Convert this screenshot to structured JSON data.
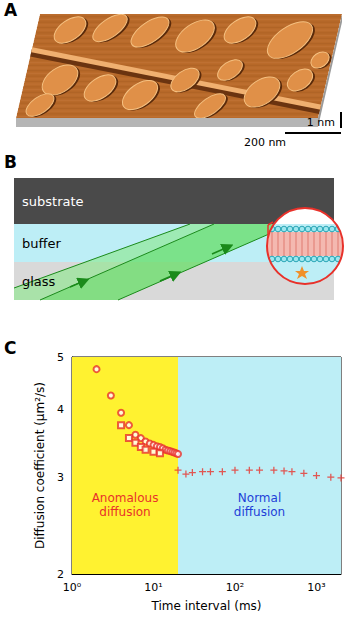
{
  "panels": {
    "A": {
      "label": "A",
      "scale_bars": {
        "horizontal": "200 nm",
        "vertical": "1 nm"
      }
    },
    "B": {
      "label": "B",
      "layers": [
        "substrate",
        "buffer",
        "glass"
      ]
    },
    "C": {
      "label": "C"
    }
  },
  "chart_data": {
    "type": "scatter",
    "x_label": "Time interval (ms)",
    "y_label": "Diffusion coefficient (μm²/s)",
    "log": true,
    "grid": false,
    "xlim": [
      1,
      2000
    ],
    "xticks": [
      {
        "value": 1,
        "label": "10⁰"
      },
      {
        "value": 10,
        "label": "10¹"
      },
      {
        "value": 100,
        "label": "10²"
      },
      {
        "value": 1000,
        "label": "10³"
      }
    ],
    "ylim": [
      2,
      5
    ],
    "yticks": [
      2,
      3,
      4,
      5
    ],
    "regions": [
      {
        "label": "Anomalous diffusion",
        "x": [
          1,
          20
        ],
        "color": "#fff230"
      },
      {
        "label": "Normal diffusion",
        "x": [
          20,
          2000
        ],
        "color": "#bdeef6"
      }
    ],
    "series": [
      {
        "color": "#e8312a",
        "marker": "circle",
        "x": [
          2,
          3,
          4,
          5,
          6,
          7,
          8,
          9,
          10,
          11,
          12,
          13,
          14,
          15,
          16,
          17,
          18,
          19,
          20
        ],
        "values": [
          4.75,
          4.25,
          3.95,
          3.75,
          3.6,
          3.55,
          3.5,
          3.47,
          3.45,
          3.43,
          3.42,
          3.4,
          3.38,
          3.37,
          3.36,
          3.35,
          3.34,
          3.33,
          3.32
        ]
      },
      {
        "color": "#e8312a",
        "marker": "square",
        "x": [
          4,
          5,
          6,
          7,
          8,
          10,
          12
        ],
        "values": [
          3.75,
          3.55,
          3.48,
          3.42,
          3.38,
          3.35,
          3.33
        ]
      },
      {
        "color": "#e8312a",
        "marker": "plus",
        "x": [
          20,
          25,
          30,
          40,
          50,
          70,
          100,
          150,
          200,
          300,
          400,
          500,
          700,
          1000,
          1500,
          2000
        ],
        "values": [
          3.1,
          3.05,
          3.07,
          3.08,
          3.08,
          3.08,
          3.1,
          3.1,
          3.1,
          3.1,
          3.09,
          3.08,
          3.06,
          3.03,
          3.01,
          3.0
        ]
      }
    ]
  }
}
